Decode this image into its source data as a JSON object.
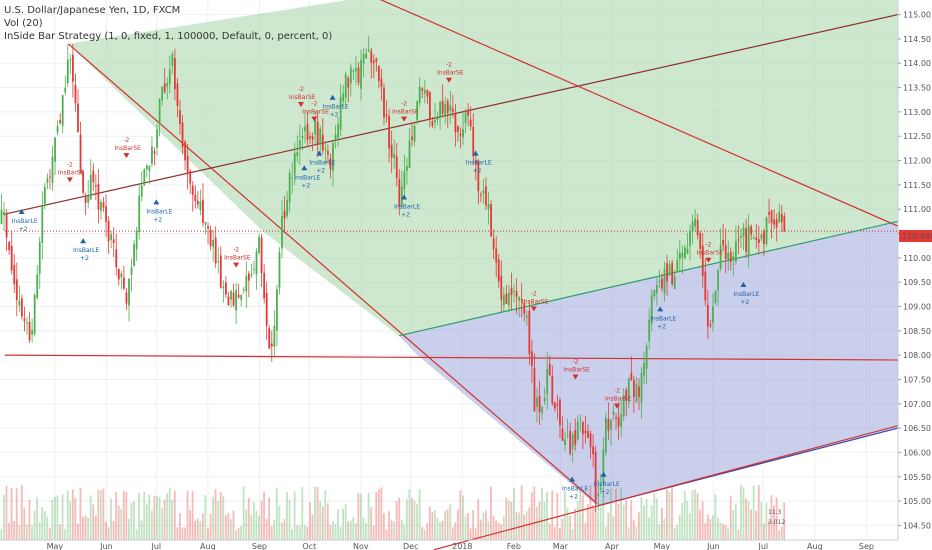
{
  "header": {
    "symbol_line": "U.S. Dollar/Japanese Yen, 1D, FXCM",
    "volume_line": "Vol (20)",
    "strategy_line": "InSide Bar Strategy (1, 0, fixed, 1, 100000, Default, 0, percent, 0)"
  },
  "price_tag": {
    "value": "110.449",
    "color": "#e53935"
  },
  "volume_labels": {
    "top": "11.3",
    "bottom": "3.012"
  },
  "colors": {
    "up": "#4caf50",
    "down": "#e53935",
    "zone_green": "#a5d6a7",
    "zone_blue": "#9fa8da",
    "line_red": "#d32f2f",
    "line_brown": "#8d2f2f",
    "line_green": "#2e9c6a",
    "line_blue": "#3949ab",
    "sig_long": "#1e62a8",
    "sig_short": "#d32f2f"
  },
  "chart_data": {
    "type": "candlestick",
    "title": "U.S. Dollar/Japanese Yen, 1D, FXCM",
    "ylim": [
      104.2,
      115.3
    ],
    "y_ticks": [
      "104.50",
      "105.00",
      "105.50",
      "106.00",
      "106.50",
      "107.00",
      "107.50",
      "108.00",
      "108.50",
      "109.00",
      "109.50",
      "110.00",
      "110.50",
      "111.00",
      "111.50",
      "112.00",
      "112.50",
      "113.00",
      "113.50",
      "114.00",
      "114.50",
      "115.00"
    ],
    "x_ticks": [
      "May",
      "Jun",
      "Jul",
      "Aug",
      "Sep",
      "Oct",
      "Nov",
      "Dec",
      "2018",
      "Feb",
      "Mar",
      "Apr",
      "May",
      "Jun",
      "Jul",
      "Aug",
      "Sep"
    ],
    "grid": true,
    "price_path": [
      {
        "date": "2017-04-01",
        "close": 110.8
      },
      {
        "date": "2017-04-10",
        "close": 108.8
      },
      {
        "date": "2017-04-17",
        "close": 108.5
      },
      {
        "date": "2017-04-24",
        "close": 111.2
      },
      {
        "date": "2017-05-05",
        "close": 113.0
      },
      {
        "date": "2017-05-10",
        "close": 114.3
      },
      {
        "date": "2017-05-18",
        "close": 111.3
      },
      {
        "date": "2017-05-25",
        "close": 111.5
      },
      {
        "date": "2017-06-01",
        "close": 110.7
      },
      {
        "date": "2017-06-07",
        "close": 109.8
      },
      {
        "date": "2017-06-14",
        "close": 109.2
      },
      {
        "date": "2017-06-21",
        "close": 111.4
      },
      {
        "date": "2017-06-30",
        "close": 112.4
      },
      {
        "date": "2017-07-07",
        "close": 113.8
      },
      {
        "date": "2017-07-11",
        "close": 114.0
      },
      {
        "date": "2017-07-18",
        "close": 112.0
      },
      {
        "date": "2017-07-26",
        "close": 111.2
      },
      {
        "date": "2017-08-02",
        "close": 110.4
      },
      {
        "date": "2017-08-10",
        "close": 109.3
      },
      {
        "date": "2017-08-18",
        "close": 109.2
      },
      {
        "date": "2017-08-25",
        "close": 109.4
      },
      {
        "date": "2017-09-01",
        "close": 110.2
      },
      {
        "date": "2017-09-08",
        "close": 107.9
      },
      {
        "date": "2017-09-15",
        "close": 110.8
      },
      {
        "date": "2017-09-22",
        "close": 112.0
      },
      {
        "date": "2017-09-29",
        "close": 112.5
      },
      {
        "date": "2017-10-06",
        "close": 112.6
      },
      {
        "date": "2017-10-13",
        "close": 111.8
      },
      {
        "date": "2017-10-20",
        "close": 113.4
      },
      {
        "date": "2017-10-27",
        "close": 113.7
      },
      {
        "date": "2017-11-03",
        "close": 114.0
      },
      {
        "date": "2017-11-08",
        "close": 114.3
      },
      {
        "date": "2017-11-16",
        "close": 112.9
      },
      {
        "date": "2017-11-24",
        "close": 111.3
      },
      {
        "date": "2017-12-01",
        "close": 112.4
      },
      {
        "date": "2017-12-08",
        "close": 113.5
      },
      {
        "date": "2017-12-15",
        "close": 112.6
      },
      {
        "date": "2017-12-22",
        "close": 113.3
      },
      {
        "date": "2017-12-29",
        "close": 112.7
      },
      {
        "date": "2018-01-05",
        "close": 113.0
      },
      {
        "date": "2018-01-10",
        "close": 111.4
      },
      {
        "date": "2018-01-17",
        "close": 111.0
      },
      {
        "date": "2018-01-24",
        "close": 109.4
      },
      {
        "date": "2018-01-31",
        "close": 109.2
      },
      {
        "date": "2018-02-07",
        "close": 109.2
      },
      {
        "date": "2018-02-14",
        "close": 106.8
      },
      {
        "date": "2018-02-21",
        "close": 107.5
      },
      {
        "date": "2018-02-28",
        "close": 106.8
      },
      {
        "date": "2018-03-06",
        "close": 106.0
      },
      {
        "date": "2018-03-13",
        "close": 106.5
      },
      {
        "date": "2018-03-20",
        "close": 106.2
      },
      {
        "date": "2018-03-23",
        "close": 104.7
      },
      {
        "date": "2018-03-28",
        "close": 106.5
      },
      {
        "date": "2018-04-04",
        "close": 106.7
      },
      {
        "date": "2018-04-11",
        "close": 107.3
      },
      {
        "date": "2018-04-18",
        "close": 107.3
      },
      {
        "date": "2018-04-25",
        "close": 109.0
      },
      {
        "date": "2018-05-02",
        "close": 109.7
      },
      {
        "date": "2018-05-09",
        "close": 109.7
      },
      {
        "date": "2018-05-16",
        "close": 110.4
      },
      {
        "date": "2018-05-21",
        "close": 111.0
      },
      {
        "date": "2018-05-29",
        "close": 108.6
      },
      {
        "date": "2018-06-05",
        "close": 110.0
      },
      {
        "date": "2018-06-12",
        "close": 110.2
      },
      {
        "date": "2018-06-19",
        "close": 110.4
      },
      {
        "date": "2018-06-26",
        "close": 110.4
      },
      {
        "date": "2018-07-03",
        "close": 110.6
      },
      {
        "date": "2018-07-10",
        "close": 110.8
      },
      {
        "date": "2018-07-14",
        "close": 110.45
      }
    ],
    "trend_lines": [
      {
        "color": "line_red",
        "from": {
          "date": "2017-04-01",
          "price": 110.55
        },
        "to": {
          "date": "2018-09-20",
          "price": 110.55
        },
        "style": "dotted"
      },
      {
        "color": "line_red",
        "from": {
          "date": "2017-04-01",
          "price": 108.0
        },
        "to": {
          "date": "2018-09-20",
          "price": 107.9
        }
      },
      {
        "color": "line_red",
        "from": {
          "date": "2017-05-09",
          "price": 114.4
        },
        "to": {
          "date": "2018-03-23",
          "price": 104.95
        }
      },
      {
        "color": "line_red",
        "from": {
          "date": "2017-10-31",
          "price": 115.5
        },
        "to": {
          "date": "2018-09-20",
          "price": 110.65
        }
      },
      {
        "color": "line_brown",
        "from": {
          "date": "2017-04-01",
          "price": 110.9
        },
        "to": {
          "date": "2018-09-20",
          "price": 115.0
        }
      },
      {
        "color": "line_green",
        "from": {
          "date": "2017-11-24",
          "price": 108.4
        },
        "to": {
          "date": "2018-09-20",
          "price": 110.75
        }
      },
      {
        "color": "line_blue",
        "from": {
          "date": "2018-03-23",
          "price": 104.9
        },
        "to": {
          "date": "2018-09-20",
          "price": 106.5
        }
      },
      {
        "color": "line_red",
        "from": {
          "date": "2017-12-15",
          "price": 104.0
        },
        "to": {
          "date": "2018-09-20",
          "price": 106.55
        }
      }
    ],
    "zones": [
      {
        "color": "zone_green",
        "points": [
          {
            "date": "2017-05-09",
            "price": 114.4
          },
          {
            "date": "2017-10-24",
            "price": 115.3
          },
          {
            "date": "2018-09-20",
            "price": 115.3
          },
          {
            "date": "2018-09-20",
            "price": 110.75
          },
          {
            "date": "2017-11-24",
            "price": 108.4
          },
          {
            "date": "2017-09-03",
            "price": 110.55
          }
        ]
      },
      {
        "color": "zone_blue",
        "points": [
          {
            "date": "2017-11-24",
            "price": 108.4
          },
          {
            "date": "2018-09-20",
            "price": 110.75
          },
          {
            "date": "2018-09-20",
            "price": 106.5
          },
          {
            "date": "2018-03-23",
            "price": 104.9
          },
          {
            "date": "2017-12-05",
            "price": 108.0
          }
        ]
      }
    ],
    "signals": [
      {
        "date": "2017-04-11",
        "price": 110.9,
        "type": "long",
        "name": "InsBarLE",
        "qty": "+2"
      },
      {
        "date": "2017-05-18",
        "price": 110.3,
        "type": "long",
        "name": "InsBarLE",
        "qty": "+2"
      },
      {
        "date": "2017-05-10",
        "price": 111.55,
        "type": "short",
        "name": "InsBarSE",
        "qty": "-2"
      },
      {
        "date": "2017-06-13",
        "price": 112.05,
        "type": "short",
        "name": "InsBarSE",
        "qty": "-2"
      },
      {
        "date": "2017-07-01",
        "price": 111.1,
        "type": "long",
        "name": "InsBarLE",
        "qty": "+2"
      },
      {
        "date": "2017-08-18",
        "price": 109.8,
        "type": "short",
        "name": "InsBarSE",
        "qty": "-2"
      },
      {
        "date": "2017-09-26",
        "price": 113.1,
        "type": "short",
        "name": "InsBarSE",
        "qty": "-2"
      },
      {
        "date": "2017-09-28",
        "price": 111.8,
        "type": "long",
        "name": "InsBarLE",
        "qty": "+2"
      },
      {
        "date": "2017-10-07",
        "price": 112.1,
        "type": "long",
        "name": "InsBarLE",
        "qty": "+2"
      },
      {
        "date": "2017-10-04",
        "price": 112.8,
        "type": "short",
        "name": "InsBarSE",
        "qty": "-2"
      },
      {
        "date": "2017-10-15",
        "price": 113.25,
        "type": "long",
        "name": "InsBarLE",
        "qty": "+2"
      },
      {
        "date": "2017-11-27",
        "price": 112.8,
        "type": "short",
        "name": "InsBarSE",
        "qty": "-2"
      },
      {
        "date": "2017-11-27",
        "price": 111.2,
        "type": "long",
        "name": "InsBarLE",
        "qty": "+2"
      },
      {
        "date": "2017-12-24",
        "price": 113.6,
        "type": "short",
        "name": "InsBarSE",
        "qty": "-2"
      },
      {
        "date": "2018-01-09",
        "price": 112.1,
        "type": "long",
        "name": "InsBarLE",
        "qty": "+2"
      },
      {
        "date": "2018-02-13",
        "price": 108.9,
        "type": "short",
        "name": "InsBarSE",
        "qty": "-2"
      },
      {
        "date": "2018-03-10",
        "price": 107.5,
        "type": "short",
        "name": "InsBarSE",
        "qty": "-2"
      },
      {
        "date": "2018-03-08",
        "price": 105.4,
        "type": "long",
        "name": "InsBarLE",
        "qty": "+2"
      },
      {
        "date": "2018-03-27",
        "price": 105.5,
        "type": "long",
        "name": "InsBarLE",
        "qty": "+2"
      },
      {
        "date": "2018-04-04",
        "price": 106.9,
        "type": "short",
        "name": "InsBarSE",
        "qty": "-2"
      },
      {
        "date": "2018-04-30",
        "price": 108.9,
        "type": "long",
        "name": "InsBarLE",
        "qty": "+2"
      },
      {
        "date": "2018-05-29",
        "price": 109.9,
        "type": "short",
        "name": "InsBarSE",
        "qty": "-2"
      },
      {
        "date": "2018-06-19",
        "price": 109.4,
        "type": "long",
        "name": "InsBarLE",
        "qty": "+2"
      }
    ]
  }
}
